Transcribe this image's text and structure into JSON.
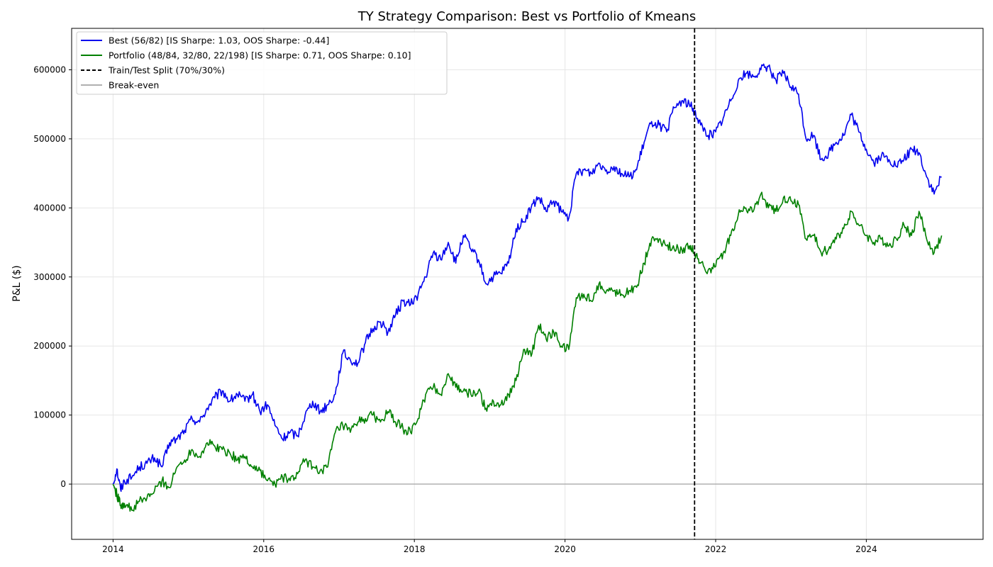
{
  "chart_data": {
    "type": "line",
    "title": "TY Strategy Comparison: Best vs Portfolio of Kmeans",
    "xlabel": "",
    "ylabel": "P&L ($)",
    "xlim": [
      2013.45,
      2025.55
    ],
    "ylim": [
      -80000,
      660000
    ],
    "x_ticks": [
      2014,
      2016,
      2018,
      2020,
      2022,
      2024
    ],
    "y_ticks": [
      0,
      100000,
      200000,
      300000,
      400000,
      500000,
      600000
    ],
    "grid": true,
    "legend_position": "upper left",
    "split": {
      "label": "Train/Test Split (70%/30%)",
      "x": 2021.72,
      "color": "#000000"
    },
    "breakeven": {
      "label": "Break-even",
      "y": 0,
      "color": "#b0b0b0"
    },
    "series": [
      {
        "name": "Best (56/82) [IS Sharpe: 1.03, OOS Sharpe: -0.44]",
        "color": "#0000ee",
        "x": [
          2014.0,
          2014.05,
          2014.1,
          2014.15,
          2014.25,
          2014.35,
          2014.45,
          2014.55,
          2014.65,
          2014.75,
          2014.85,
          2014.95,
          2015.05,
          2015.15,
          2015.25,
          2015.35,
          2015.45,
          2015.55,
          2015.65,
          2015.75,
          2015.85,
          2015.95,
          2016.05,
          2016.15,
          2016.25,
          2016.35,
          2016.45,
          2016.55,
          2016.65,
          2016.75,
          2016.85,
          2016.95,
          2017.05,
          2017.15,
          2017.25,
          2017.35,
          2017.45,
          2017.55,
          2017.65,
          2017.75,
          2017.85,
          2017.95,
          2018.05,
          2018.15,
          2018.25,
          2018.35,
          2018.45,
          2018.55,
          2018.65,
          2018.75,
          2018.85,
          2018.95,
          2019.05,
          2019.15,
          2019.25,
          2019.35,
          2019.45,
          2019.55,
          2019.65,
          2019.75,
          2019.85,
          2019.95,
          2020.05,
          2020.15,
          2020.25,
          2020.35,
          2020.45,
          2020.55,
          2020.65,
          2020.75,
          2020.85,
          2020.95,
          2021.05,
          2021.15,
          2021.25,
          2021.35,
          2021.45,
          2021.55,
          2021.65,
          2021.72,
          2021.8,
          2021.9,
          2022.0,
          2022.1,
          2022.2,
          2022.3,
          2022.4,
          2022.5,
          2022.6,
          2022.7,
          2022.8,
          2022.9,
          2023.0,
          2023.1,
          2023.2,
          2023.3,
          2023.4,
          2023.5,
          2023.6,
          2023.7,
          2023.8,
          2023.9,
          2024.0,
          2024.1,
          2024.2,
          2024.3,
          2024.4,
          2024.5,
          2024.6,
          2024.7,
          2024.8,
          2024.9,
          2025.0
        ],
        "values": [
          0,
          22000,
          -8000,
          5000,
          10000,
          25000,
          30000,
          38000,
          25000,
          60000,
          65000,
          78000,
          95000,
          90000,
          110000,
          125000,
          135000,
          120000,
          130000,
          120000,
          130000,
          105000,
          115000,
          85000,
          65000,
          75000,
          70000,
          100000,
          120000,
          105000,
          115000,
          130000,
          190000,
          180000,
          175000,
          205000,
          225000,
          235000,
          220000,
          245000,
          265000,
          260000,
          275000,
          300000,
          335000,
          325000,
          350000,
          320000,
          360000,
          340000,
          325000,
          290000,
          300000,
          305000,
          320000,
          370000,
          380000,
          400000,
          415000,
          395000,
          410000,
          395000,
          385000,
          450000,
          455000,
          450000,
          465000,
          455000,
          460000,
          450000,
          445000,
          455000,
          495000,
          525000,
          520000,
          510000,
          545000,
          555000,
          550000,
          540000,
          520000,
          505000,
          510000,
          530000,
          555000,
          585000,
          595000,
          590000,
          600000,
          605000,
          585000,
          595000,
          575000,
          565000,
          500000,
          505000,
          470000,
          480000,
          495000,
          505000,
          535000,
          510000,
          485000,
          465000,
          475000,
          470000,
          460000,
          470000,
          485000,
          480000,
          445000,
          420000,
          445000
        ]
      },
      {
        "name": "Portfolio (48/84, 32/80, 22/198) [IS Sharpe: 0.71, OOS Sharpe: 0.10]",
        "color": "#008000",
        "x": [
          2014.0,
          2014.05,
          2014.1,
          2014.15,
          2014.25,
          2014.35,
          2014.45,
          2014.55,
          2014.65,
          2014.75,
          2014.85,
          2014.95,
          2015.05,
          2015.15,
          2015.25,
          2015.35,
          2015.45,
          2015.55,
          2015.65,
          2015.75,
          2015.85,
          2015.95,
          2016.05,
          2016.15,
          2016.25,
          2016.35,
          2016.45,
          2016.55,
          2016.65,
          2016.75,
          2016.85,
          2016.95,
          2017.05,
          2017.15,
          2017.25,
          2017.35,
          2017.45,
          2017.55,
          2017.65,
          2017.75,
          2017.85,
          2017.95,
          2018.05,
          2018.15,
          2018.25,
          2018.35,
          2018.45,
          2018.55,
          2018.65,
          2018.75,
          2018.85,
          2018.95,
          2019.05,
          2019.15,
          2019.25,
          2019.35,
          2019.45,
          2019.55,
          2019.65,
          2019.75,
          2019.85,
          2019.95,
          2020.05,
          2020.15,
          2020.25,
          2020.35,
          2020.45,
          2020.55,
          2020.65,
          2020.75,
          2020.85,
          2020.95,
          2021.05,
          2021.15,
          2021.25,
          2021.35,
          2021.45,
          2021.55,
          2021.65,
          2021.72,
          2021.8,
          2021.9,
          2022.0,
          2022.1,
          2022.2,
          2022.3,
          2022.4,
          2022.5,
          2022.6,
          2022.7,
          2022.8,
          2022.9,
          2023.0,
          2023.1,
          2023.2,
          2023.3,
          2023.4,
          2023.5,
          2023.6,
          2023.7,
          2023.8,
          2023.9,
          2024.0,
          2024.1,
          2024.2,
          2024.3,
          2024.4,
          2024.5,
          2024.6,
          2024.7,
          2024.8,
          2024.9,
          2025.0
        ],
        "values": [
          0,
          -15000,
          -30000,
          -28000,
          -38000,
          -25000,
          -20000,
          -10000,
          5000,
          -5000,
          25000,
          35000,
          50000,
          40000,
          60000,
          55000,
          50000,
          45000,
          35000,
          40000,
          25000,
          20000,
          5000,
          0,
          10000,
          5000,
          15000,
          35000,
          25000,
          20000,
          25000,
          75000,
          85000,
          75000,
          90000,
          95000,
          100000,
          90000,
          105000,
          90000,
          80000,
          75000,
          95000,
          130000,
          140000,
          130000,
          160000,
          140000,
          135000,
          130000,
          135000,
          110000,
          120000,
          115000,
          130000,
          150000,
          195000,
          185000,
          230000,
          210000,
          220000,
          200000,
          195000,
          270000,
          275000,
          265000,
          290000,
          280000,
          280000,
          275000,
          280000,
          285000,
          320000,
          355000,
          355000,
          345000,
          340000,
          340000,
          345000,
          335000,
          320000,
          310000,
          315000,
          335000,
          360000,
          390000,
          400000,
          395000,
          420000,
          400000,
          395000,
          415000,
          410000,
          405000,
          355000,
          360000,
          335000,
          340000,
          355000,
          370000,
          395000,
          375000,
          360000,
          350000,
          355000,
          345000,
          355000,
          375000,
          360000,
          395000,
          355000,
          335000,
          360000
        ]
      }
    ]
  }
}
